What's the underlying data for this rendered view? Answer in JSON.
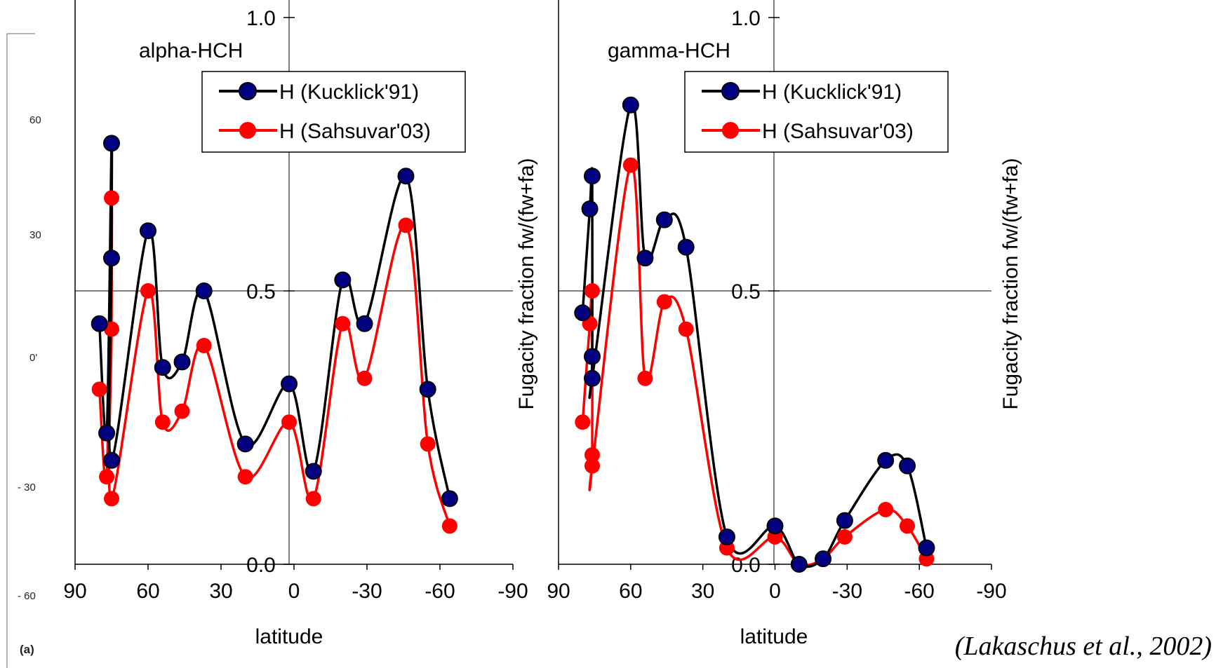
{
  "background_map": {
    "lat_labels": [
      "60",
      "30",
      "0'",
      "- 30",
      "- 60"
    ],
    "panel_tag": "(a)"
  },
  "citation": "(Lakaschus et al., 2002)",
  "colors": {
    "kucklick_line": "#000000",
    "kucklick_marker": "#000080",
    "sahsuvar": "#ff0000",
    "axis": "#000000"
  },
  "chart_data": [
    {
      "type": "line",
      "panel_title": "alpha-HCH",
      "xlabel": "latitude",
      "ylabel": "Fugacity fraction fw/(fw+fa)",
      "xlim": [
        90,
        -90
      ],
      "ylim": [
        0.0,
        1.0
      ],
      "x_ticks": [
        "90",
        "60",
        "30",
        "0",
        "-30",
        "-60",
        "-90"
      ],
      "y_ticks": [
        "0.0",
        "0.5",
        "1.0"
      ],
      "legend_position": "top-right",
      "series": [
        {
          "name": "H (Kucklick'91)",
          "points": [
            [
              80,
              0.44
            ],
            [
              77,
              0.24
            ],
            [
              75,
              0.77
            ],
            [
              75,
              0.56
            ],
            [
              75,
              0.19
            ],
            [
              60,
              0.61
            ],
            [
              54,
              0.36
            ],
            [
              46,
              0.37
            ],
            [
              37,
              0.5
            ],
            [
              20,
              0.22
            ],
            [
              2,
              0.33
            ],
            [
              -8,
              0.17
            ],
            [
              -20,
              0.52
            ],
            [
              -29,
              0.44
            ],
            [
              -46,
              0.71
            ],
            [
              -55,
              0.32
            ],
            [
              -64,
              0.12
            ]
          ]
        },
        {
          "name": "H (Sahsuvar'03)",
          "points": [
            [
              80,
              0.32
            ],
            [
              77,
              0.16
            ],
            [
              75,
              0.67
            ],
            [
              75,
              0.43
            ],
            [
              75,
              0.12
            ],
            [
              60,
              0.5
            ],
            [
              54,
              0.26
            ],
            [
              46,
              0.28
            ],
            [
              37,
              0.4
            ],
            [
              20,
              0.16
            ],
            [
              2,
              0.26
            ],
            [
              -8,
              0.12
            ],
            [
              -20,
              0.44
            ],
            [
              -29,
              0.34
            ],
            [
              -46,
              0.62
            ],
            [
              -55,
              0.22
            ],
            [
              -64,
              0.07
            ]
          ]
        }
      ]
    },
    {
      "type": "line",
      "panel_title": "gamma-HCH",
      "xlabel": "latitude",
      "ylabel": "Fugacity fraction fw/(fw+fa)",
      "xlim": [
        90,
        -90
      ],
      "ylim": [
        0.0,
        1.0
      ],
      "x_ticks": [
        "90",
        "60",
        "30",
        "0",
        "-30",
        "-60",
        "-90"
      ],
      "y_ticks": [
        "0.0",
        "0.5",
        "1.0"
      ],
      "legend_position": "top-right",
      "series": [
        {
          "name": "H (Kucklick'91)",
          "points": [
            [
              80,
              0.46
            ],
            [
              77,
              0.65
            ],
            [
              76,
              0.71
            ],
            [
              76,
              0.38
            ],
            [
              76,
              0.34
            ],
            [
              60,
              0.84
            ],
            [
              54,
              0.56
            ],
            [
              46,
              0.63
            ],
            [
              37,
              0.58
            ],
            [
              20,
              0.05
            ],
            [
              0,
              0.07
            ],
            [
              -10,
              0.0
            ],
            [
              -20,
              0.01
            ],
            [
              -29,
              0.08
            ],
            [
              -46,
              0.19
            ],
            [
              -55,
              0.18
            ],
            [
              -63,
              0.03
            ]
          ]
        },
        {
          "name": "H (Sahsuvar'03)",
          "points": [
            [
              80,
              0.26
            ],
            [
              77,
              0.44
            ],
            [
              76,
              0.5
            ],
            [
              76,
              0.2
            ],
            [
              76,
              0.18
            ],
            [
              60,
              0.73
            ],
            [
              54,
              0.34
            ],
            [
              46,
              0.48
            ],
            [
              37,
              0.43
            ],
            [
              20,
              0.03
            ],
            [
              0,
              0.05
            ],
            [
              -10,
              0.0
            ],
            [
              -20,
              0.01
            ],
            [
              -29,
              0.05
            ],
            [
              -46,
              0.1
            ],
            [
              -55,
              0.07
            ],
            [
              -63,
              0.01
            ]
          ]
        }
      ]
    }
  ]
}
